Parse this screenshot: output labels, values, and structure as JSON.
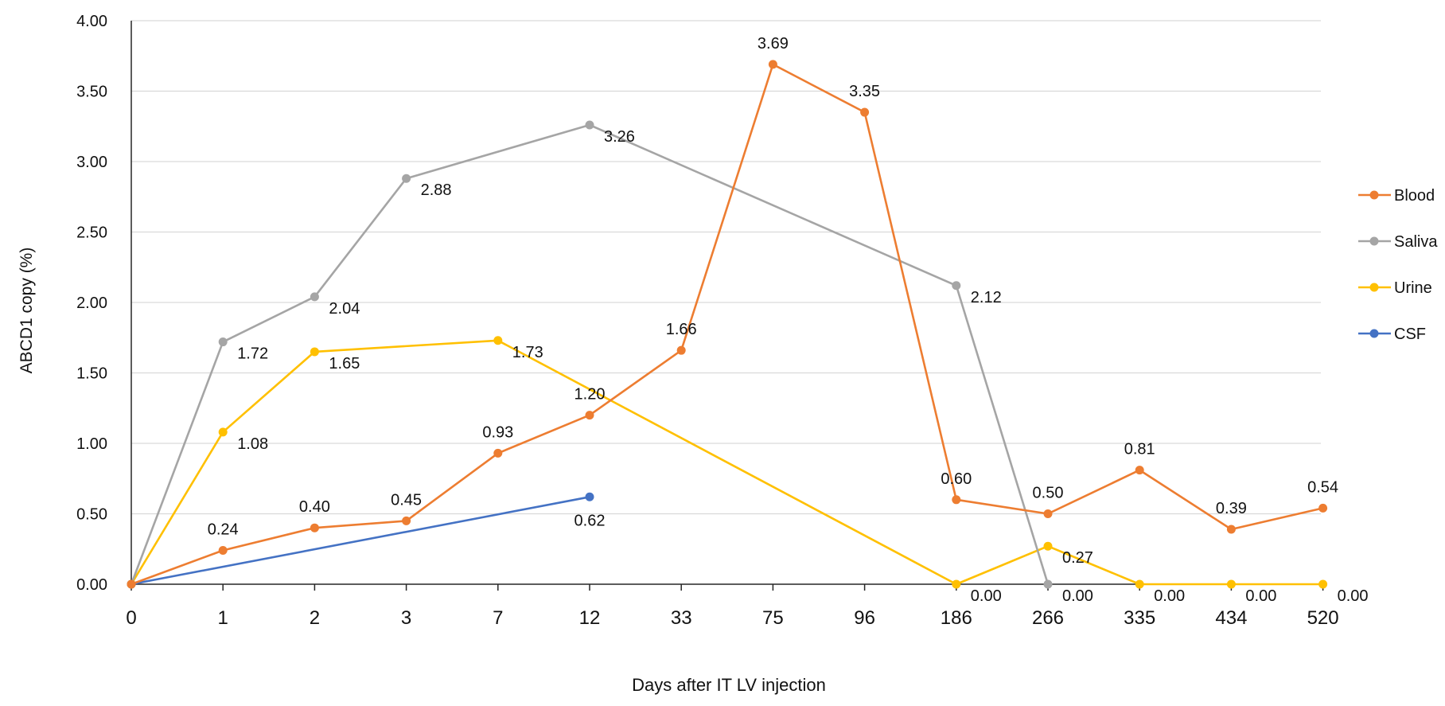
{
  "chart_data": {
    "type": "line",
    "title": "",
    "xlabel": "Days after IT LV injection",
    "ylabel": "ABCD1 copy (%)",
    "categories": [
      "0",
      "1",
      "2",
      "3",
      "7",
      "12",
      "33",
      "75",
      "96",
      "186",
      "266",
      "335",
      "434",
      "520"
    ],
    "ylim": [
      0,
      4
    ],
    "yticks": [
      "0.00",
      "0.50",
      "1.00",
      "1.50",
      "2.00",
      "2.50",
      "3.00",
      "3.50",
      "4.00"
    ],
    "grid": true,
    "legend_position": "right",
    "series": [
      {
        "name": "Blood",
        "color": "#ED7D31",
        "values": [
          0,
          0.24,
          0.4,
          0.45,
          0.93,
          1.2,
          1.66,
          3.69,
          3.35,
          0.6,
          0.5,
          0.81,
          0.39,
          0.54
        ],
        "labels": [
          "",
          "0.24",
          "0.40",
          "0.45",
          "0.93",
          "1.20",
          "1.66",
          "3.69",
          "3.35",
          "0.60",
          "0.50",
          "0.81",
          "0.39",
          "0.54"
        ]
      },
      {
        "name": "Saliva",
        "color": "#A5A5A5",
        "values": [
          0,
          1.72,
          2.04,
          2.88,
          null,
          3.26,
          null,
          null,
          null,
          2.12,
          0,
          null,
          null,
          null
        ],
        "labels": [
          "",
          "1.72",
          "2.04",
          "2.88",
          "",
          "3.26",
          "",
          "",
          "",
          "2.12",
          "0.00",
          "",
          "",
          ""
        ]
      },
      {
        "name": "Urine",
        "color": "#FFC000",
        "values": [
          0,
          1.08,
          1.65,
          null,
          1.73,
          null,
          null,
          null,
          null,
          0,
          0.27,
          0,
          0,
          0
        ],
        "labels": [
          "",
          "1.08",
          "1.65",
          "",
          "1.73",
          "",
          "",
          "",
          "",
          "0.00",
          "0.27",
          "0.00",
          "0.00",
          "0.00"
        ]
      },
      {
        "name": "CSF",
        "color": "#4472C4",
        "values": [
          0,
          null,
          null,
          null,
          null,
          0.62,
          null,
          null,
          null,
          null,
          null,
          null,
          null,
          null
        ],
        "labels": [
          "",
          "",
          "",
          "",
          "",
          "0.62",
          "",
          "",
          "",
          "",
          "",
          "",
          "",
          ""
        ]
      }
    ]
  }
}
